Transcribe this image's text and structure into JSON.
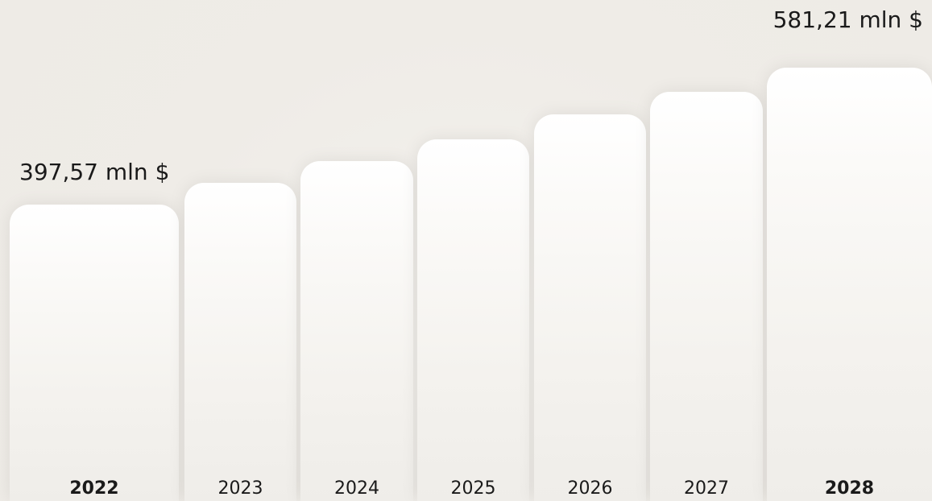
{
  "chart_data": {
    "type": "bar",
    "categories": [
      "2022",
      "2023",
      "2024",
      "2025",
      "2026",
      "2027",
      "2028"
    ],
    "values": [
      397.57,
      426.8,
      456.4,
      485.0,
      518.5,
      548.5,
      581.21
    ],
    "value_unit": "mln $",
    "bold_categories": [
      "2022",
      "2028"
    ],
    "data_labels": [
      {
        "category": "2022",
        "text": "397,57 mln $"
      },
      {
        "category": "2028",
        "text": "581,21 mln $"
      }
    ],
    "ylim": [
      0,
      620
    ],
    "grid": false,
    "legend": "none",
    "colors": {
      "background": "#efece7",
      "bar_top": "#ffffff",
      "bar_bottom": "#efede9",
      "text": "#1a1a1a"
    }
  }
}
